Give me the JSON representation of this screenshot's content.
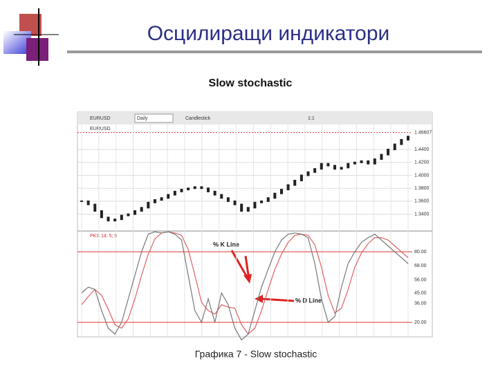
{
  "header": {
    "title": "Осцилиращи индикатори"
  },
  "subtitle": "Slow stochastic",
  "figure": {
    "toolbar": {
      "symbol": "EURUSD",
      "period": "Daily",
      "style": "Candlestick",
      "zoom": "1:1"
    },
    "symbol_label": "EURUSD",
    "price_axis": {
      "ticks": [
        {
          "value": 1.44,
          "label": "1.4400"
        },
        {
          "value": 1.42,
          "label": "1.4200"
        },
        {
          "value": 1.4,
          "label": "1.4000"
        },
        {
          "value": 1.38,
          "label": "1.3800"
        },
        {
          "value": 1.36,
          "label": "1.3600"
        },
        {
          "value": 1.34,
          "label": "1.3400"
        }
      ],
      "last": 1.46607,
      "range": [
        1.315,
        1.47
      ]
    },
    "price_close": [
      1.36,
      1.355,
      1.345,
      1.335,
      1.33,
      1.332,
      1.338,
      1.34,
      1.345,
      1.35,
      1.358,
      1.362,
      1.365,
      1.37,
      1.375,
      1.378,
      1.38,
      1.382,
      1.38,
      1.375,
      1.37,
      1.365,
      1.36,
      1.355,
      1.345,
      1.35,
      1.358,
      1.36,
      1.365,
      1.372,
      1.378,
      1.385,
      1.392,
      1.4,
      1.405,
      1.41,
      1.418,
      1.415,
      1.41,
      1.412,
      1.418,
      1.42,
      1.422,
      1.418,
      1.425,
      1.432,
      1.44,
      1.448,
      1.455,
      1.46
    ],
    "indicator": {
      "label": "PKS 14; 5; 5",
      "range": [
        0,
        100
      ],
      "ticks": [
        {
          "value": 80,
          "label": "80.00"
        },
        {
          "value": 68,
          "label": "68.00"
        },
        {
          "value": 56,
          "label": "56.00"
        },
        {
          "value": 45,
          "label": "45.00"
        },
        {
          "value": 36,
          "label": "36.00"
        },
        {
          "value": 20,
          "label": "20.00"
        }
      ],
      "levels": [
        80,
        20
      ],
      "k_line": [
        45,
        50,
        48,
        30,
        15,
        10,
        20,
        40,
        60,
        80,
        95,
        97,
        96,
        97,
        95,
        90,
        60,
        30,
        20,
        40,
        20,
        45,
        35,
        15,
        5,
        10,
        30,
        50,
        65,
        80,
        90,
        95,
        96,
        95,
        92,
        70,
        40,
        20,
        25,
        50,
        70,
        80,
        88,
        92,
        95,
        90,
        85,
        80,
        75,
        70
      ],
      "d_line": [
        35,
        42,
        48,
        43,
        31,
        18,
        15,
        23,
        40,
        60,
        78,
        91,
        96,
        97,
        96,
        94,
        82,
        60,
        37,
        30,
        27,
        35,
        33,
        32,
        18,
        10,
        15,
        30,
        48,
        65,
        78,
        88,
        94,
        95,
        94,
        86,
        67,
        43,
        28,
        32,
        48,
        67,
        79,
        87,
        92,
        92,
        90,
        85,
        80,
        75
      ]
    },
    "annotations": {
      "k": "% K Line",
      "d": "% D Line"
    }
  },
  "caption": "Графика 7 - Slow stochastic"
}
